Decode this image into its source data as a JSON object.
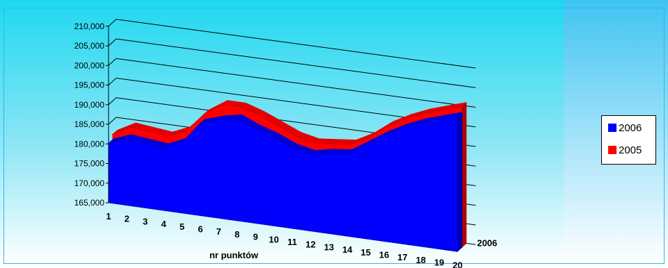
{
  "chart_data": {
    "type": "area",
    "title": "",
    "xlabel": "nr punktów",
    "ylabel": "",
    "categories": [
      "1",
      "2",
      "3",
      "4",
      "5",
      "6",
      "7",
      "8",
      "9",
      "10",
      "11",
      "12",
      "13",
      "14",
      "15",
      "16",
      "17",
      "18",
      "19",
      "20"
    ],
    "depth_label": "2006",
    "ylim": [
      165000,
      210000
    ],
    "yticks": [
      "165,000",
      "170,000",
      "175,000",
      "180,000",
      "185,000",
      "190,000",
      "195,000",
      "200,000",
      "205,000",
      "210,000"
    ],
    "grid": true,
    "legend": "right",
    "series": [
      {
        "name": "2006",
        "color": "#0000ff",
        "values": [
          180200,
          182000,
          181500,
          181000,
          183000,
          188500,
          190000,
          191000,
          189000,
          187500,
          185500,
          184500,
          185500,
          186000,
          189000,
          192000,
          194500,
          196500,
          198000,
          199500
        ]
      },
      {
        "name": "2005",
        "color": "#ff0000",
        "values": [
          181500,
          184000,
          183500,
          183000,
          185000,
          190000,
          193000,
          193000,
          191500,
          189500,
          187500,
          186500,
          187000,
          187500,
          190000,
          193500,
          196000,
          198000,
          199500,
          201000
        ]
      }
    ],
    "colors": {
      "background_top": "#1ed8f0",
      "background_bottom": "#ffffff",
      "frame": "#2ab8e8"
    }
  }
}
